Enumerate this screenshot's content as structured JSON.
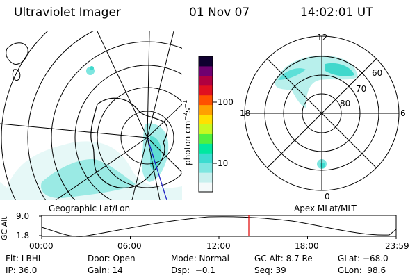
{
  "header": {
    "instrument": "Ultraviolet Imager",
    "date": "01 Nov 07",
    "time": "14:02:01 UT"
  },
  "colorbar": {
    "unit_text": "photon cm",
    "unit_sup1": "−2",
    "unit_mid": "s",
    "unit_sup2": "−1",
    "tick_high": "100",
    "tick_low": "10",
    "colors": [
      "#f4fafa",
      "#c8f0ee",
      "#7ee6e0",
      "#3cdcd0",
      "#00e8a0",
      "#50f040",
      "#c8f820",
      "#ffe000",
      "#ffa000",
      "#ff5000",
      "#e01020",
      "#b00040",
      "#700070",
      "#100030"
    ]
  },
  "left_panel": {
    "label": "Geographic Lat/Lon"
  },
  "right_panel": {
    "label": "Apex MLat/MLT",
    "mlt_labels": {
      "top": "12",
      "left": "18",
      "right": "6",
      "bottom": "0"
    },
    "lat_labels": [
      "60",
      "70",
      "80"
    ]
  },
  "altitude_plot": {
    "axis_label": "GC Alt",
    "y_ticks": [
      "9.0",
      "1.8"
    ],
    "x_ticks": [
      "00:00",
      "06:00",
      "12:00",
      "18:00",
      "23:59"
    ],
    "marker_color": "#e00000"
  },
  "info": {
    "flt": "Flt: LBHL",
    "door": "Door: Open",
    "mode": "Mode: Normal",
    "gc_alt": "GC Alt: 8.7 Re",
    "glat": "GLat: −68.0",
    "ip": "IP: 36.0",
    "gain": "Gain: 14",
    "dsp": "Dsp:  −0.1",
    "seq": "Seq: 39",
    "glon": "GLon:  98.6"
  }
}
